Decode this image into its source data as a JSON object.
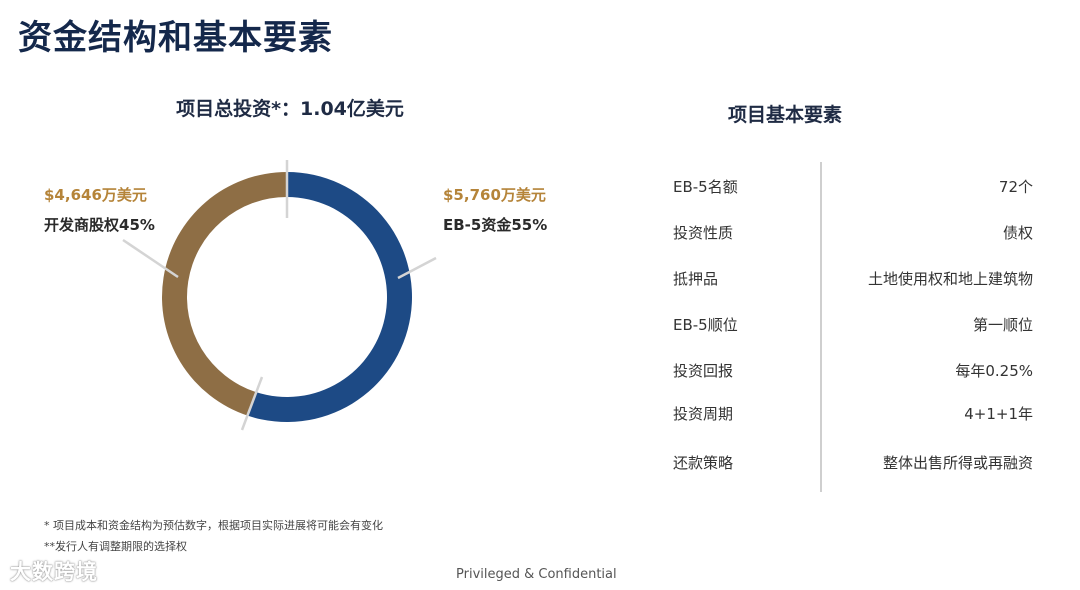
{
  "page": {
    "title": "资金结构和基本要素"
  },
  "chart_data": {
    "type": "pie",
    "title": "项目总投资*：1.04亿美元",
    "slices": [
      {
        "label": "EB-5资金55%",
        "amount": "$5,760万美元",
        "value": 55,
        "color": "#1d4a85"
      },
      {
        "label": "开发商股权45%",
        "amount": "$4,646万美元",
        "value": 45,
        "color": "#8e6e45"
      }
    ]
  },
  "table": {
    "title": "项目基本要素",
    "rows": [
      {
        "key": "EB-5名额",
        "value": "72个"
      },
      {
        "key": "投资性质",
        "value": "债权"
      },
      {
        "key": "抵押品",
        "value": "土地使用权和地上建筑物"
      },
      {
        "key": "EB-5顺位",
        "value": "第一顺位"
      },
      {
        "key": "投资回报",
        "value": "每年0.25%"
      },
      {
        "key": "投资周期",
        "value": "4+1+1年"
      },
      {
        "key": "还款策略",
        "value": "整体出售所得或再融资"
      }
    ]
  },
  "footnotes": [
    "* 项目成本和资金结构为预估数字，根据项目实际进展将可能会有变化",
    "**发行人有调整期限的选择权"
  ],
  "footer": "Privileged & Confidential",
  "watermark": "大数跨境"
}
